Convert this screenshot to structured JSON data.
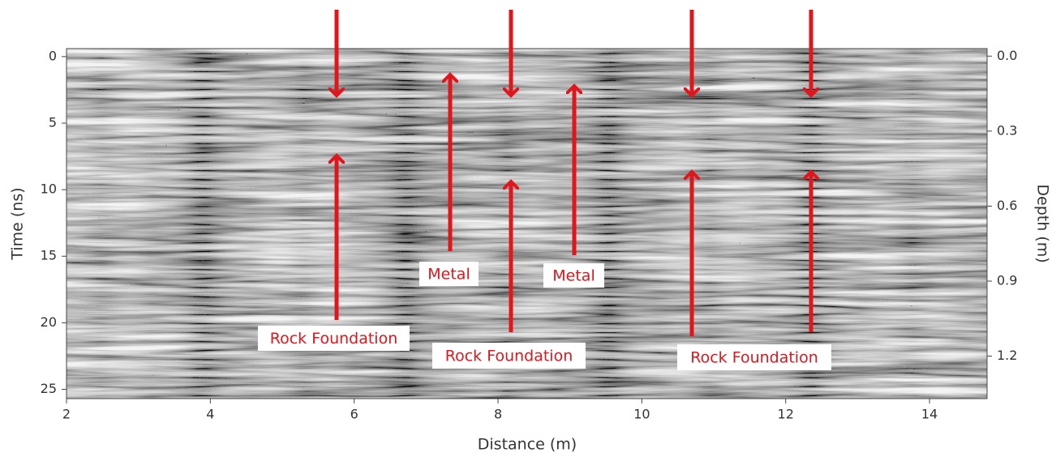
{
  "chart_data": {
    "type": "radargram",
    "xlabel": "Distance (m)",
    "ylabel": "Time (ns)",
    "y2label": "Depth (m)",
    "xlim": [
      2,
      14.8
    ],
    "xticks": [
      2,
      4,
      6,
      8,
      10,
      12,
      14
    ],
    "ylim": [
      -0.6,
      25.7
    ],
    "yticks": [
      0,
      5,
      10,
      15,
      20,
      25
    ],
    "y2lim": [
      -0.03,
      1.37
    ],
    "y2ticks": [
      {
        "value": 0,
        "label": "0.0"
      },
      0.3,
      0.6,
      0.9,
      1.2
    ],
    "annotations": [
      "Rock Foundation",
      "Metal",
      "Rock Foundation",
      "Metal",
      "Rock Foundation"
    ],
    "annotation_color": "#e0161d"
  }
}
